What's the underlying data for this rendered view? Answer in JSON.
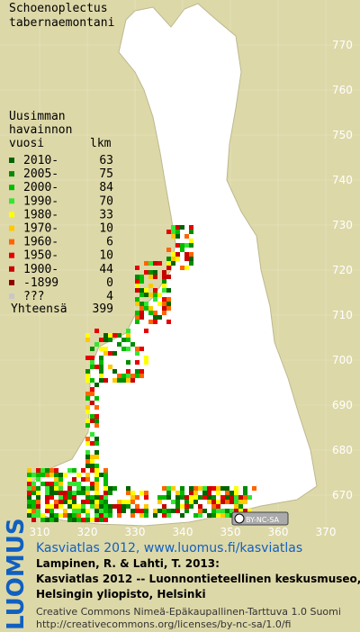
{
  "title": [
    "Schoenoplectus",
    "tabernaemontani"
  ],
  "legend": {
    "header": [
      "Uusimman",
      "havainnon",
      "vuosi"
    ],
    "count_header": "lkm",
    "rows": [
      {
        "period": "2010-",
        "color": "#006400",
        "count": 63
      },
      {
        "period": "2005-",
        "color": "#008c00",
        "count": 75
      },
      {
        "period": "2000-",
        "color": "#00bb00",
        "count": 84
      },
      {
        "period": "1990-",
        "color": "#33e633",
        "count": 70
      },
      {
        "period": "1980-",
        "color": "#ffff00",
        "count": 33
      },
      {
        "period": "1970-",
        "color": "#ffc800",
        "count": 10
      },
      {
        "period": "1960-",
        "color": "#ff6400",
        "count": 6
      },
      {
        "period": "1950-",
        "color": "#e60000",
        "count": 10
      },
      {
        "period": "1900-",
        "color": "#c80000",
        "count": 44
      },
      {
        "period": "-1899",
        "color": "#8c0000",
        "count": 0
      },
      {
        "period": "???",
        "color": "#c8c8c8",
        "count": 4
      }
    ],
    "total_label": "Yhteensä",
    "total": 399
  },
  "northing_labels": [
    770,
    760,
    750,
    740,
    730,
    720,
    710,
    700,
    690,
    680,
    670
  ],
  "easting_labels": [
    310,
    320,
    330,
    340,
    350,
    360,
    370
  ],
  "cc_badge": "BY-NC-SA",
  "logo": "LUOMUS",
  "footer": {
    "link": "Kasviatlas 2012, www.luomus.fi/kasviatlas",
    "citation": [
      "Lampinen, R. & Lahti, T. 2013:",
      "Kasviatlas 2012 -- Luonnontieteellinen keskusmuseo,",
      "Helsingin yliopisto, Helsinki"
    ],
    "license": [
      "Creative Commons Nimeä-Epäkaupallinen-Tarttuva 1.0 Suomi",
      "http://creativecommons.org/licenses/by-nc-sa/1.0/fi"
    ]
  }
}
